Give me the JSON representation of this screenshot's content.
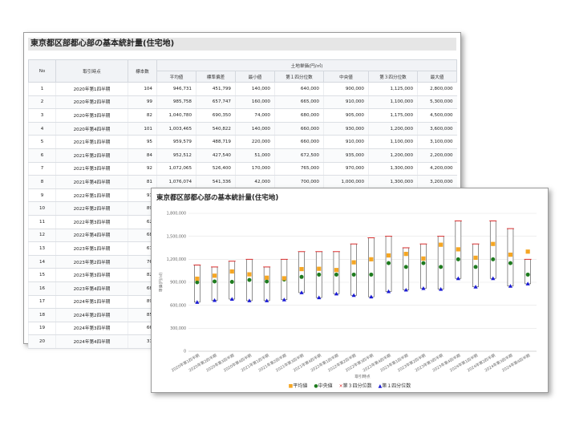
{
  "table_panel": {
    "title": "東京都区部都心部の基本統計量(住宅地)",
    "group_header": "土地単価(円/㎡)",
    "columns": [
      "No",
      "取引時点",
      "標本数",
      "平均値",
      "標準偏差",
      "最小値",
      "第１四分位数",
      "中央値",
      "第３四分位数",
      "最大値"
    ],
    "rows": [
      [
        "1",
        "2020年第1四半期",
        "104",
        "946,731",
        "451,799",
        "140,000",
        "640,000",
        "900,000",
        "1,125,000",
        "2,800,000"
      ],
      [
        "2",
        "2020年第2四半期",
        "99",
        "985,758",
        "657,747",
        "160,000",
        "665,000",
        "910,000",
        "1,100,000",
        "5,300,000"
      ],
      [
        "3",
        "2020年第3四半期",
        "82",
        "1,040,780",
        "690,350",
        "74,000",
        "680,000",
        "905,000",
        "1,175,000",
        "4,500,000"
      ],
      [
        "4",
        "2020年第4四半期",
        "101",
        "1,003,465",
        "540,822",
        "140,000",
        "660,000",
        "930,000",
        "1,200,000",
        "3,600,000"
      ],
      [
        "5",
        "2021年第1四半期",
        "95",
        "959,579",
        "488,719",
        "220,000",
        "660,000",
        "910,000",
        "1,100,000",
        "3,100,000"
      ],
      [
        "6",
        "2021年第2四半期",
        "84",
        "952,512",
        "427,540",
        "51,000",
        "672,500",
        "935,000",
        "1,200,000",
        "2,200,000"
      ],
      [
        "7",
        "2021年第3四半期",
        "92",
        "1,072,065",
        "526,400",
        "170,000",
        "765,000",
        "970,000",
        "1,300,000",
        "4,200,000"
      ],
      [
        "8",
        "2021年第4四半期",
        "81",
        "1,076,074",
        "541,336",
        "42,000",
        "700,000",
        "1,000,000",
        "1,300,000",
        "3,200,000"
      ],
      [
        "9",
        "2022年第1四半期",
        "91",
        "",
        "",
        "",
        "",
        "",
        "",
        ""
      ],
      [
        "10",
        "2022年第2四半期",
        "89",
        "",
        "",
        "",
        "",
        "",
        "",
        ""
      ],
      [
        "11",
        "2022年第3四半期",
        "62",
        "",
        "",
        "",
        "",
        "",
        "",
        ""
      ],
      [
        "12",
        "2022年第4四半期",
        "68",
        "",
        "",
        "",
        "",
        "",
        "",
        ""
      ],
      [
        "13",
        "2023年第1四半期",
        "67",
        "",
        "",
        "",
        "",
        "",
        "",
        ""
      ],
      [
        "14",
        "2023年第2四半期",
        "76",
        "",
        "",
        "",
        "",
        "",
        "",
        ""
      ],
      [
        "15",
        "2023年第3四半期",
        "82",
        "",
        "",
        "",
        "",
        "",
        "",
        ""
      ],
      [
        "16",
        "2023年第4四半期",
        "68",
        "",
        "",
        "",
        "",
        "",
        "",
        ""
      ],
      [
        "17",
        "2024年第1四半期",
        "89",
        "",
        "",
        "",
        "",
        "",
        "",
        ""
      ],
      [
        "18",
        "2024年第2四半期",
        "85",
        "",
        "",
        "",
        "",
        "",
        "",
        ""
      ],
      [
        "19",
        "2024年第3四半期",
        "66",
        "",
        "",
        "",
        "",
        "",
        "",
        ""
      ],
      [
        "20",
        "2024年第4四半期",
        "31",
        "",
        "",
        "",
        "",
        "",
        "",
        ""
      ]
    ]
  },
  "chart_data": {
    "type": "stock",
    "title": "東京都区部都心部の基本統計量(住宅地)",
    "xlabel": "取引時点",
    "ylabel": "単価(円/㎡)",
    "ylim": [
      0,
      1800000
    ],
    "yticks": [
      0,
      300000,
      600000,
      900000,
      1200000,
      1500000,
      1800000
    ],
    "ytick_labels": [
      "0",
      "300,000",
      "600,000",
      "900,000",
      "1,200,000",
      "1,500,000",
      "1,800,000"
    ],
    "categories": [
      "2020年第1四半期",
      "2020年第2四半期",
      "2020年第3四半期",
      "2020年第4四半期",
      "2021年第1四半期",
      "2021年第2四半期",
      "2021年第3四半期",
      "2021年第4四半期",
      "2022年第1四半期",
      "2022年第2四半期",
      "2022年第3四半期",
      "2022年第4四半期",
      "2023年第1四半期",
      "2023年第2四半期",
      "2023年第3四半期",
      "2023年第4四半期",
      "2024年第1四半期",
      "2024年第2四半期",
      "2024年第3四半期",
      "2024年第4四半期"
    ],
    "series": [
      {
        "name": "平均値",
        "marker": "square",
        "color": "#f5a623",
        "values": [
          946731,
          985758,
          1040780,
          1003465,
          959579,
          952512,
          1072065,
          1076074,
          1060000,
          1160000,
          1200000,
          1250000,
          1270000,
          1210000,
          1390000,
          1330000,
          1220000,
          1400000,
          1260000,
          1300000
        ]
      },
      {
        "name": "中央値",
        "marker": "circle",
        "color": "#1e7b1e",
        "values": [
          900000,
          910000,
          905000,
          930000,
          910000,
          935000,
          970000,
          1000000,
          1000000,
          1000000,
          1000000,
          1150000,
          1100000,
          1150000,
          1100000,
          1200000,
          1100000,
          1200000,
          1150000,
          1000000
        ]
      },
      {
        "name": "第３四分位数",
        "marker": "x",
        "color": "#e02020",
        "values": [
          1125000,
          1100000,
          1175000,
          1200000,
          1100000,
          1200000,
          1300000,
          1300000,
          1300000,
          1400000,
          1480000,
          1500000,
          1350000,
          1400000,
          1500000,
          1700000,
          1400000,
          1700000,
          1600000,
          1200000
        ]
      },
      {
        "name": "第１四分位数",
        "marker": "triangle",
        "color": "#1a1ad6",
        "values": [
          640000,
          665000,
          680000,
          660000,
          660000,
          672500,
          765000,
          700000,
          750000,
          730000,
          710000,
          780000,
          800000,
          820000,
          810000,
          950000,
          840000,
          950000,
          850000,
          880000
        ]
      }
    ],
    "legend_position": "bottom",
    "grid": true
  }
}
